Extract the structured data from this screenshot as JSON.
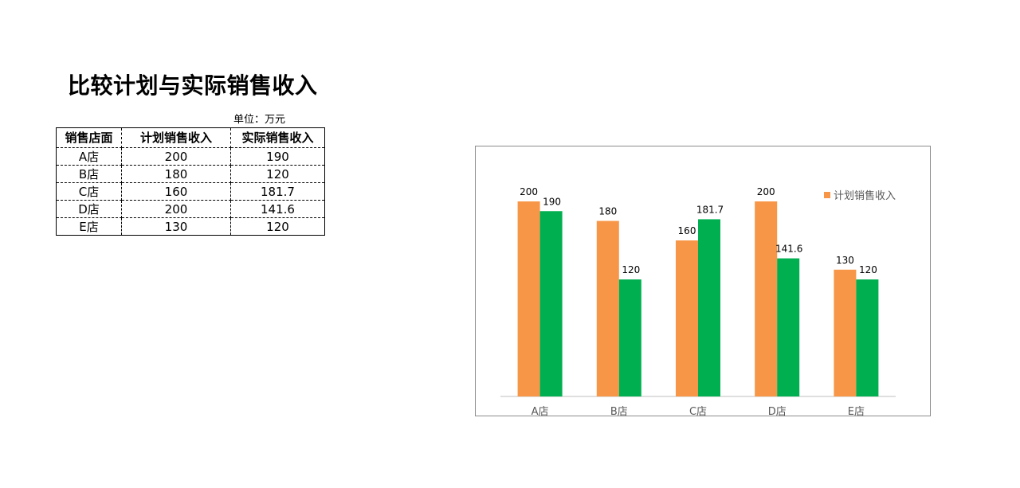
{
  "page": {
    "title": "比较计划与实际销售收入",
    "unit": "单位：万元"
  },
  "table": {
    "headers": [
      "销售店面",
      "计划销售收入",
      "实际销售收入"
    ],
    "rows": [
      [
        "A店",
        "200",
        "190"
      ],
      [
        "B店",
        "180",
        "120"
      ],
      [
        "C店",
        "160",
        "181.7"
      ],
      [
        "D店",
        "200",
        "141.6"
      ],
      [
        "E店",
        "130",
        "120"
      ]
    ]
  },
  "chart_data": {
    "type": "bar",
    "categories": [
      "A店",
      "B店",
      "C店",
      "D店",
      "E店"
    ],
    "series": [
      {
        "name": "计划销售收入",
        "values": [
          200,
          180,
          160,
          200,
          130
        ],
        "color": "#F79646"
      },
      {
        "values": [
          190,
          120,
          181.7,
          141.6,
          120
        ],
        "color": "#00B050"
      }
    ],
    "data_label_text": [
      [
        "200",
        "180",
        "160",
        "200",
        "130"
      ],
      [
        "190",
        "120",
        "181.7",
        "141.6",
        "120"
      ]
    ],
    "title": "",
    "xlabel": "",
    "ylabel": "",
    "ylim": [
      0,
      200
    ],
    "grid": false,
    "legend_position": "top-right",
    "legend": {
      "label": "计划销售收入",
      "color": "#F79646"
    }
  }
}
